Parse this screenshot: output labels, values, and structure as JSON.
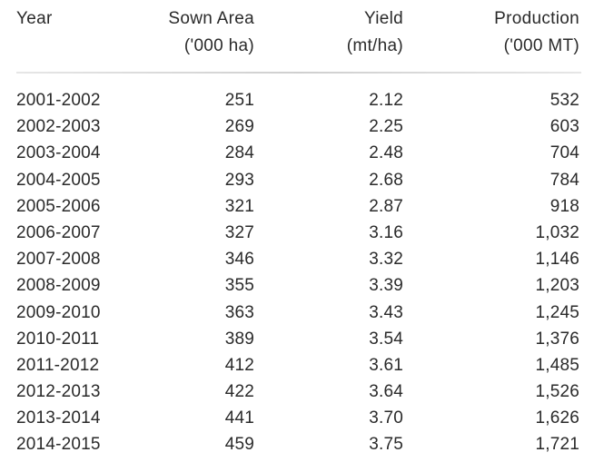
{
  "table": {
    "headers": {
      "year": [
        "Year"
      ],
      "sown_area": [
        "Sown Area",
        "('000 ha)"
      ],
      "yield": [
        "Yield",
        "(mt/ha)"
      ],
      "production": [
        "Production",
        "('000 MT)"
      ]
    },
    "rows": [
      {
        "year": "2001-2002",
        "sown_area": "251",
        "yield": "2.12",
        "production": "532"
      },
      {
        "year": "2002-2003",
        "sown_area": "269",
        "yield": "2.25",
        "production": "603"
      },
      {
        "year": "2003-2004",
        "sown_area": "284",
        "yield": "2.48",
        "production": "704"
      },
      {
        "year": "2004-2005",
        "sown_area": "293",
        "yield": "2.68",
        "production": "784"
      },
      {
        "year": "2005-2006",
        "sown_area": "321",
        "yield": "2.87",
        "production": "918"
      },
      {
        "year": "2006-2007",
        "sown_area": "327",
        "yield": "3.16",
        "production": "1,032"
      },
      {
        "year": "2007-2008",
        "sown_area": "346",
        "yield": "3.32",
        "production": "1,146"
      },
      {
        "year": "2008-2009",
        "sown_area": "355",
        "yield": "3.39",
        "production": "1,203"
      },
      {
        "year": "2009-2010",
        "sown_area": "363",
        "yield": "3.43",
        "production": "1,245"
      },
      {
        "year": "2010-2011",
        "sown_area": "389",
        "yield": "3.54",
        "production": "1,376"
      },
      {
        "year": "2011-2012",
        "sown_area": "412",
        "yield": "3.61",
        "production": "1,485"
      },
      {
        "year": "2012-2013",
        "sown_area": "422",
        "yield": "3.64",
        "production": "1,526"
      },
      {
        "year": "2013-2014",
        "sown_area": "441",
        "yield": "3.70",
        "production": "1,626"
      },
      {
        "year": "2014-2015",
        "sown_area": "459",
        "yield": "3.75",
        "production": "1,721"
      }
    ]
  }
}
